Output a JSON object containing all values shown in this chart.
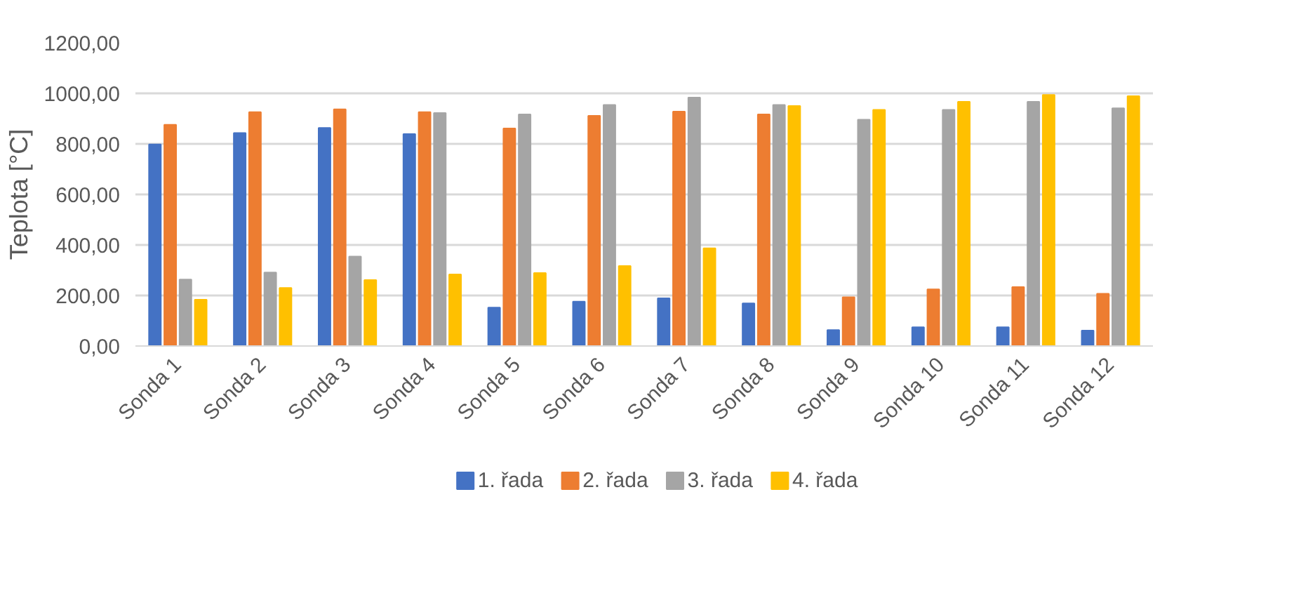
{
  "chart_data": {
    "type": "bar",
    "ylabel": "Teplota [°C]",
    "categories": [
      "Sonda 1",
      "Sonda 2",
      "Sonda 3",
      "Sonda 4",
      "Sonda 5",
      "Sonda 6",
      "Sonda 7",
      "Sonda 8",
      "Sonda 9",
      "Sonda 10",
      "Sonda 11",
      "Sonda 12"
    ],
    "series": [
      {
        "name": "1. řada",
        "color": "#4472c4",
        "values": [
          798,
          843,
          863,
          839,
          152,
          176,
          189,
          169,
          63,
          74,
          74,
          61
        ]
      },
      {
        "name": "2. řada",
        "color": "#ed7d31",
        "values": [
          876,
          926,
          937,
          926,
          861,
          911,
          928,
          917,
          193,
          224,
          233,
          207
        ]
      },
      {
        "name": "3. řada",
        "color": "#a5a5a5",
        "values": [
          263,
          291,
          354,
          922,
          917,
          954,
          983,
          954,
          896,
          935,
          967,
          941
        ]
      },
      {
        "name": "4. řada",
        "color": "#ffc000",
        "values": [
          183,
          230,
          261,
          283,
          289,
          317,
          387,
          950,
          935,
          967,
          994,
          989
        ]
      }
    ],
    "ylim": [
      0,
      1200
    ],
    "yticks": [
      {
        "value": 0,
        "label": "0,00"
      },
      {
        "value": 200,
        "label": "200,00"
      },
      {
        "value": 400,
        "label": "400,00"
      },
      {
        "value": 600,
        "label": "600,00"
      },
      {
        "value": 800,
        "label": "800,00"
      },
      {
        "value": 1000,
        "label": "1000,00"
      },
      {
        "value": 1200,
        "label": "1200,00"
      }
    ],
    "grid": "y",
    "legend": "bottom"
  }
}
